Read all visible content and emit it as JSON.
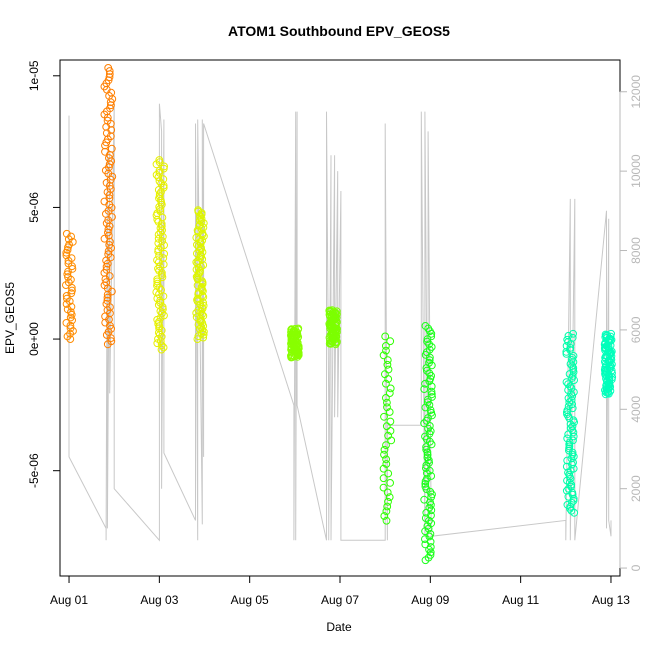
{
  "chart_data": {
    "type": "scatter",
    "title": "ATOM1 Southbound EPV_GEOS5",
    "xlabel": "Date",
    "ylabel": "EPV_GEOS5",
    "x_ticks": [
      "Aug 01",
      "Aug 03",
      "Aug 05",
      "Aug 07",
      "Aug 09",
      "Aug 11",
      "Aug 13"
    ],
    "y_ticks": [
      "-5e-06",
      "0e+00",
      "5e-06",
      "1e-05"
    ],
    "y2_ticks": [
      "0",
      "2000",
      "4000",
      "6000",
      "8000",
      "10000",
      "12000"
    ],
    "ylim": [
      -9e-06,
      1.06e-05
    ],
    "y2lim": [
      -200,
      12800
    ],
    "xlim_days": [
      0.8,
      13.2
    ],
    "right_axis_color": "#b8b8b8",
    "altitude_line_color": "#c8c8c8",
    "grid": false,
    "legend": "none",
    "epv_segments": [
      {
        "day": 1.0,
        "ymin": 0.0,
        "ymax": 4e-06,
        "color": "#ff8c00",
        "density": "sparse"
      },
      {
        "day": 1.87,
        "ymin": -2e-07,
        "ymax": 1.03e-05,
        "color": "#ff7f00",
        "density": "dense"
      },
      {
        "day": 3.02,
        "ymin": -4e-07,
        "ymax": 6.8e-06,
        "color": "#e6f000",
        "density": "dense"
      },
      {
        "day": 3.9,
        "ymin": 0.0,
        "ymax": 4.9e-06,
        "color": "#ddf500",
        "density": "dense"
      },
      {
        "day": 6.0,
        "ymin": -7e-07,
        "ymax": 4e-07,
        "color": "#88ff00",
        "density": "dense"
      },
      {
        "day": 6.85,
        "ymin": -2e-07,
        "ymax": 1.1e-06,
        "color": "#7cff00",
        "density": "dense"
      },
      {
        "day": 8.05,
        "ymin": -6.9e-06,
        "ymax": 1e-07,
        "color": "#2eff00",
        "density": "sparse"
      },
      {
        "day": 8.95,
        "ymin": -8.4e-06,
        "ymax": 5e-07,
        "color": "#1aff1a",
        "density": "dense"
      },
      {
        "day": 12.1,
        "ymin": -6.6e-06,
        "ymax": 2e-07,
        "color": "#00ffaa",
        "density": "dense"
      },
      {
        "day": 12.95,
        "ymin": -2.1e-06,
        "ymax": 2e-07,
        "color": "#00ffbb",
        "density": "dense"
      }
    ],
    "altitude_line": {
      "x_days": [
        1.0,
        1.0,
        1.82,
        1.82,
        1.85,
        1.85,
        1.9,
        1.9,
        2.0,
        2.0,
        3.0,
        3.0,
        3.05,
        3.05,
        3.1,
        3.1,
        3.8,
        3.8,
        3.85,
        3.85,
        3.95,
        3.95,
        3.98,
        3.98,
        5.98,
        5.98,
        6.02,
        6.02,
        6.05,
        6.05,
        6.7,
        6.7,
        6.75,
        6.75,
        6.8,
        6.8,
        6.88,
        6.88,
        6.95,
        6.95,
        7.02,
        7.02,
        8.0,
        8.0,
        8.05,
        8.05,
        8.8,
        8.8,
        8.88,
        8.88,
        8.95,
        8.95,
        9.02,
        9.02,
        12.0,
        12.0,
        12.1,
        12.1,
        12.2,
        12.2,
        12.9,
        12.9,
        12.95,
        12.95,
        13.0,
        13.0
      ],
      "alt": [
        11400,
        2800,
        1000,
        700,
        10500,
        1000,
        10500,
        4400,
        11700,
        2000,
        700,
        11700,
        11000,
        2000,
        11300,
        2900,
        1200,
        11200,
        700,
        11300,
        1100,
        11300,
        2800,
        11200,
        4100,
        700,
        11500,
        700,
        11500,
        4100,
        700,
        11500,
        4100,
        700,
        10400,
        700,
        10400,
        3800,
        10000,
        3800,
        9500,
        700,
        700,
        11200,
        700,
        3600,
        3600,
        11500,
        800,
        11500,
        700,
        11000,
        1000,
        800,
        1200,
        700,
        9300,
        700,
        9300,
        700,
        9000,
        1000,
        8800,
        1200,
        800,
        1200
      ]
    }
  }
}
